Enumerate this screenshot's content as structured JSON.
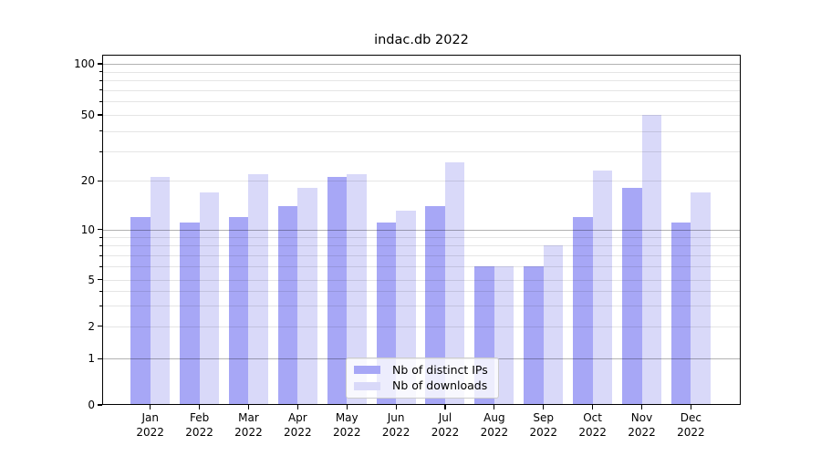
{
  "chart_data": {
    "type": "bar",
    "title": "indac.db 2022",
    "yscale": "symlog",
    "grid": true,
    "legend_position": "lower center",
    "categories": [
      "Jan 2022",
      "Feb 2022",
      "Mar 2022",
      "Apr 2022",
      "May 2022",
      "Jun 2022",
      "Jul 2022",
      "Aug 2022",
      "Sep 2022",
      "Oct 2022",
      "Nov 2022",
      "Dec 2022"
    ],
    "series": [
      {
        "name": "Nb of distinct IPs",
        "color": "#a7a7f6",
        "values": [
          12,
          11,
          12,
          14,
          21,
          11,
          14,
          6,
          6,
          12,
          18,
          11
        ]
      },
      {
        "name": "Nb of downloads",
        "color": "#d9d9f9",
        "values": [
          21,
          17,
          22,
          18,
          22,
          13,
          26,
          6,
          8,
          23,
          50,
          17
        ]
      }
    ],
    "y_tick_values": [
      0,
      1,
      2,
      5,
      10,
      20,
      50,
      100
    ],
    "y_tick_labels": [
      "0",
      "1",
      "2",
      "5",
      "10",
      "20",
      "50",
      "100"
    ],
    "y_major_gridlines": [
      1,
      10,
      100
    ],
    "y_minor_gridlines": [
      2,
      3,
      4,
      5,
      6,
      7,
      8,
      9,
      20,
      30,
      40,
      50,
      60,
      70,
      80,
      90
    ],
    "y_minor_tick_marks": [
      3,
      4,
      6,
      7,
      8,
      9,
      30,
      40,
      60,
      70,
      80,
      90
    ],
    "ylim": [
      0,
      112
    ]
  }
}
